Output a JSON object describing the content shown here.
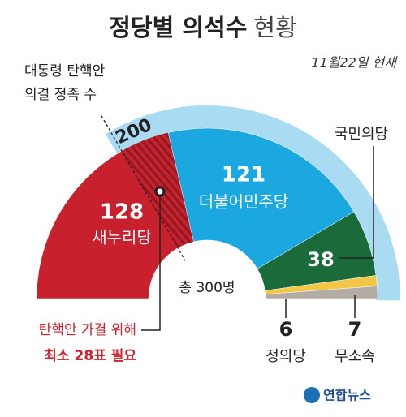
{
  "chart_data": {
    "type": "pie",
    "title": "정당별 의석수",
    "title_rest": "현황",
    "date": "11월22일 현재",
    "categories": [
      "새누리당",
      "더불어민주당",
      "국민의당",
      "정의당",
      "무소속"
    ],
    "values": [
      128,
      121,
      38,
      6,
      7
    ],
    "colors": [
      "#c8202c",
      "#1ba8e0",
      "#1b6b3a",
      "#f4c646",
      "#b3aca6"
    ],
    "threshold": {
      "label": [
        "대통령 탄핵안",
        "의결 정족 수"
      ],
      "value": 200,
      "color": "#a9dcf2"
    },
    "total_label": "총 300명",
    "note": [
      "탄핵안 가결 위해",
      "최소 28표 필요"
    ],
    "source": "연합뉴스"
  }
}
